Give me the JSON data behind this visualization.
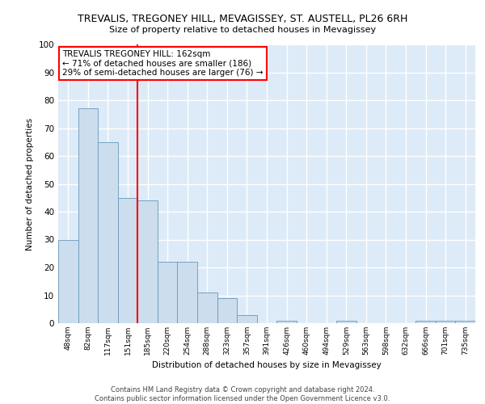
{
  "title": "TREVALIS, TREGONEY HILL, MEVAGISSEY, ST. AUSTELL, PL26 6RH",
  "subtitle": "Size of property relative to detached houses in Mevagissey",
  "xlabel": "Distribution of detached houses by size in Mevagissey",
  "ylabel": "Number of detached properties",
  "bar_labels": [
    "48sqm",
    "82sqm",
    "117sqm",
    "151sqm",
    "185sqm",
    "220sqm",
    "254sqm",
    "288sqm",
    "323sqm",
    "357sqm",
    "391sqm",
    "426sqm",
    "460sqm",
    "494sqm",
    "529sqm",
    "563sqm",
    "598sqm",
    "632sqm",
    "666sqm",
    "701sqm",
    "735sqm"
  ],
  "bar_values": [
    30,
    77,
    65,
    45,
    44,
    22,
    22,
    11,
    9,
    3,
    0,
    1,
    0,
    0,
    1,
    0,
    0,
    0,
    1,
    1,
    1
  ],
  "bar_color": "#ccdded",
  "bar_edge_color": "#6699bb",
  "vline_x": 3.5,
  "vline_color": "red",
  "annotation_text": "TREVALIS TREGONEY HILL: 162sqm\n← 71% of detached houses are smaller (186)\n29% of semi-detached houses are larger (76) →",
  "annotation_box_color": "white",
  "annotation_box_edge_color": "red",
  "ylim": [
    0,
    100
  ],
  "yticks": [
    0,
    10,
    20,
    30,
    40,
    50,
    60,
    70,
    80,
    90,
    100
  ],
  "footer_text": "Contains HM Land Registry data © Crown copyright and database right 2024.\nContains public sector information licensed under the Open Government Licence v3.0.",
  "bg_color": "#ddeaf7",
  "grid_color": "white"
}
